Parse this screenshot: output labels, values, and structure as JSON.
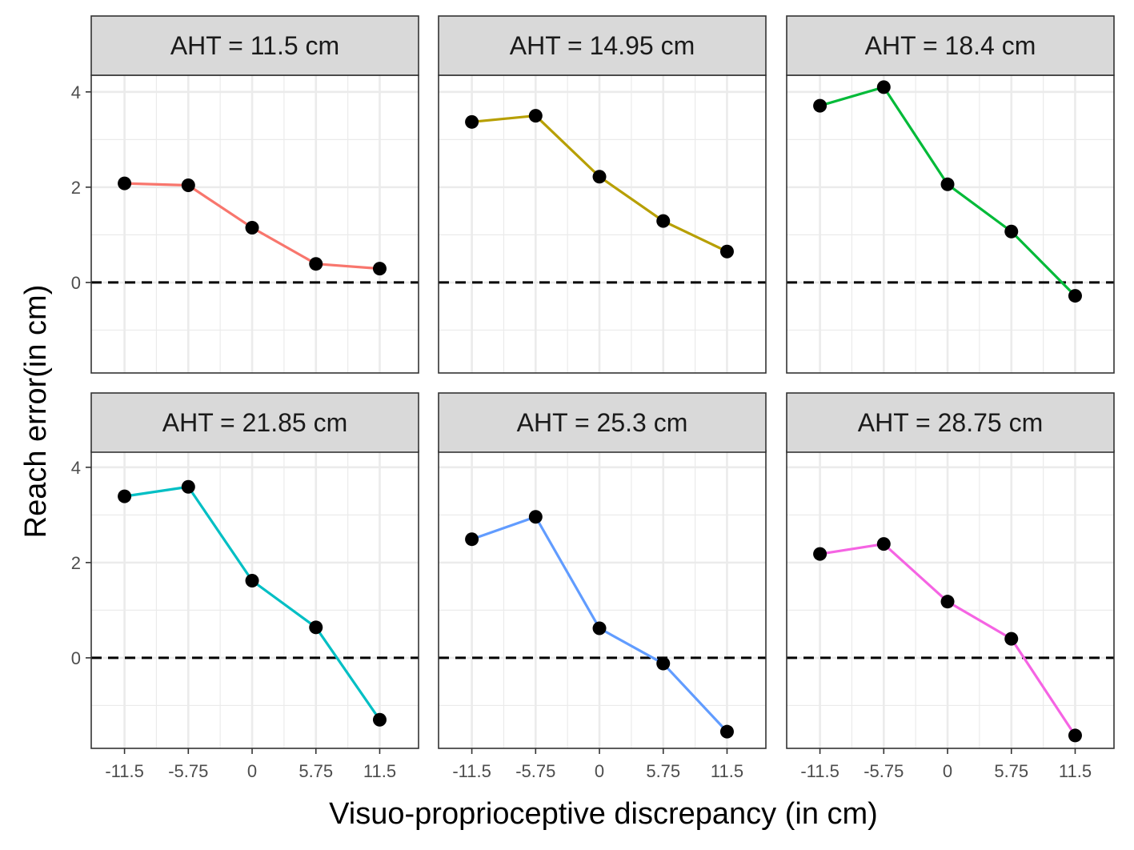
{
  "chart_data": {
    "type": "line",
    "layout": "facet-grid 2x3",
    "xlabel": "Visuo-proprioceptive discrepancy (in cm)",
    "ylabel": "Reach error(in cm)",
    "x": [
      -11.5,
      -5.75,
      0,
      5.75,
      11.5
    ],
    "x_ticks": [
      "-11.5",
      "-5.75",
      "0",
      "5.75",
      "11.5"
    ],
    "y_ticks": [
      "0",
      "2",
      "4"
    ],
    "y_tick_values": [
      0,
      2,
      4
    ],
    "xlim": [
      -14.5,
      15.0
    ],
    "ylim": [
      -1.9,
      4.35
    ],
    "grid": true,
    "reference_line": {
      "y": 0,
      "style": "dashed",
      "color": "#000000"
    },
    "point_color": "#000000",
    "panels": [
      {
        "title": "AHT = 11.5 cm",
        "color": "#F8766D",
        "values": [
          2.08,
          2.04,
          1.15,
          0.39,
          0.29
        ]
      },
      {
        "title": "AHT = 14.95 cm",
        "color": "#B79F00",
        "values": [
          3.37,
          3.5,
          2.22,
          1.29,
          0.65
        ]
      },
      {
        "title": "AHT = 18.4 cm",
        "color": "#00BA38",
        "values": [
          3.71,
          4.1,
          2.06,
          1.07,
          -0.28
        ]
      },
      {
        "title": "AHT = 21.85 cm",
        "color": "#00BFC4",
        "values": [
          3.39,
          3.59,
          1.62,
          0.64,
          -1.3
        ]
      },
      {
        "title": "AHT = 25.3 cm",
        "color": "#619CFF",
        "values": [
          2.49,
          2.96,
          0.62,
          -0.12,
          -1.55
        ]
      },
      {
        "title": "AHT = 28.75 cm",
        "color": "#F564E3",
        "values": [
          2.18,
          2.39,
          1.18,
          0.4,
          -1.63
        ]
      }
    ]
  }
}
